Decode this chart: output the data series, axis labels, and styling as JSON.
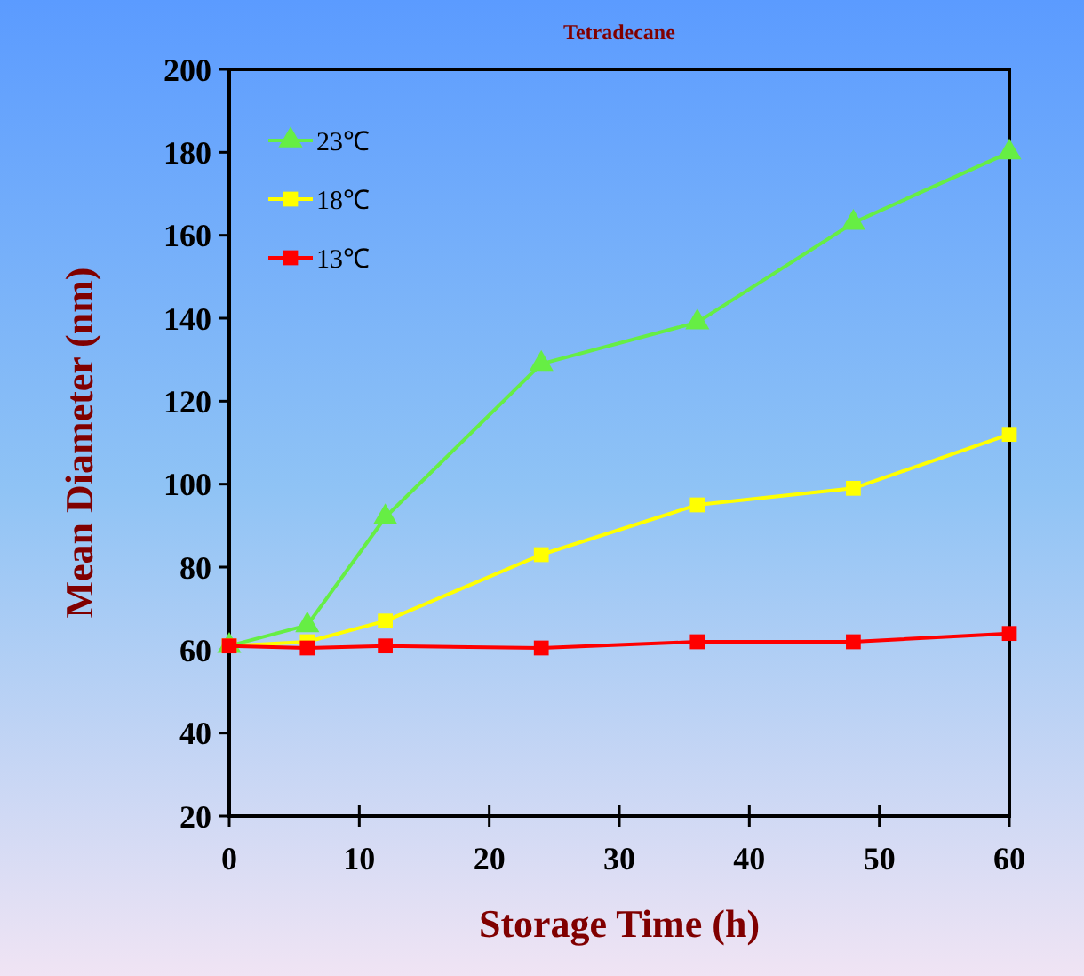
{
  "chart_data": {
    "type": "line",
    "title": "Tetradecane",
    "xlabel": "Storage Time (h)",
    "ylabel": "Mean Diameter (nm)",
    "x": [
      0,
      6,
      12,
      24,
      36,
      48,
      60
    ],
    "series": [
      {
        "name": "23℃",
        "color": "#66ee44",
        "marker": "triangle",
        "values": [
          61,
          66,
          92,
          129,
          139,
          163,
          180
        ]
      },
      {
        "name": "18℃",
        "color": "#ffff00",
        "marker": "square",
        "values": [
          61,
          62,
          67,
          83,
          95,
          99,
          112
        ]
      },
      {
        "name": "13℃",
        "color": "#ff0000",
        "marker": "square",
        "values": [
          61,
          60.5,
          61,
          60.5,
          62,
          62,
          64
        ]
      }
    ],
    "xlim": [
      0,
      60
    ],
    "xticks": [
      0,
      10,
      20,
      30,
      40,
      50,
      60
    ],
    "ylim": [
      20,
      200
    ],
    "yticks": [
      20,
      40,
      60,
      80,
      100,
      120,
      140,
      160,
      180,
      200
    ],
    "grid": false,
    "legend": "top left"
  }
}
